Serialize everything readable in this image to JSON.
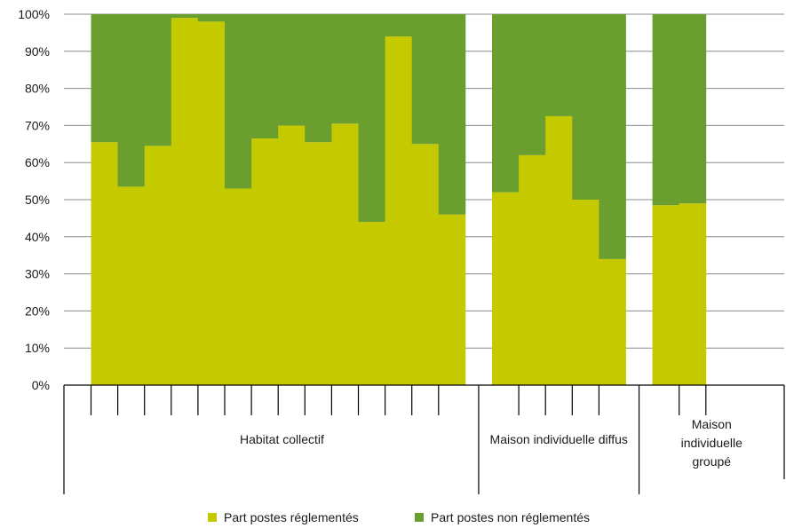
{
  "chart_data": {
    "type": "bar",
    "stacked": true,
    "ylim": [
      0,
      100
    ],
    "yticks": [
      "0%",
      "10%",
      "20%",
      "30%",
      "40%",
      "50%",
      "60%",
      "70%",
      "80%",
      "90%",
      "100%"
    ],
    "grid": true,
    "legend_position": "bottom",
    "groups": [
      {
        "label": "Habitat collectif",
        "label_lines": [
          "Habitat collectif"
        ],
        "count": 14
      },
      {
        "label": "Maison individuelle diffus",
        "label_lines": [
          "Maison individuelle diffus"
        ],
        "count": 5
      },
      {
        "label": "Maison individuelle groupé",
        "label_lines": [
          "Maison",
          "individuelle",
          "groupé"
        ],
        "count": 2
      }
    ],
    "series": [
      {
        "name": "Part postes réglementés",
        "color": "#c5c900",
        "values": [
          65.5,
          53.5,
          64.5,
          99,
          98,
          53,
          66.5,
          70,
          65.5,
          70.5,
          44,
          94,
          65,
          46,
          52,
          62,
          72.5,
          50,
          34,
          48.5,
          49
        ]
      },
      {
        "name": "Part postes non réglementés",
        "color": "#6a9e2f",
        "values": [
          34.5,
          46.5,
          35.5,
          1,
          2,
          47,
          33.5,
          30,
          34.5,
          29.5,
          56,
          6,
          35,
          54,
          48,
          38,
          27.5,
          50,
          66,
          51.5,
          51
        ]
      }
    ]
  }
}
